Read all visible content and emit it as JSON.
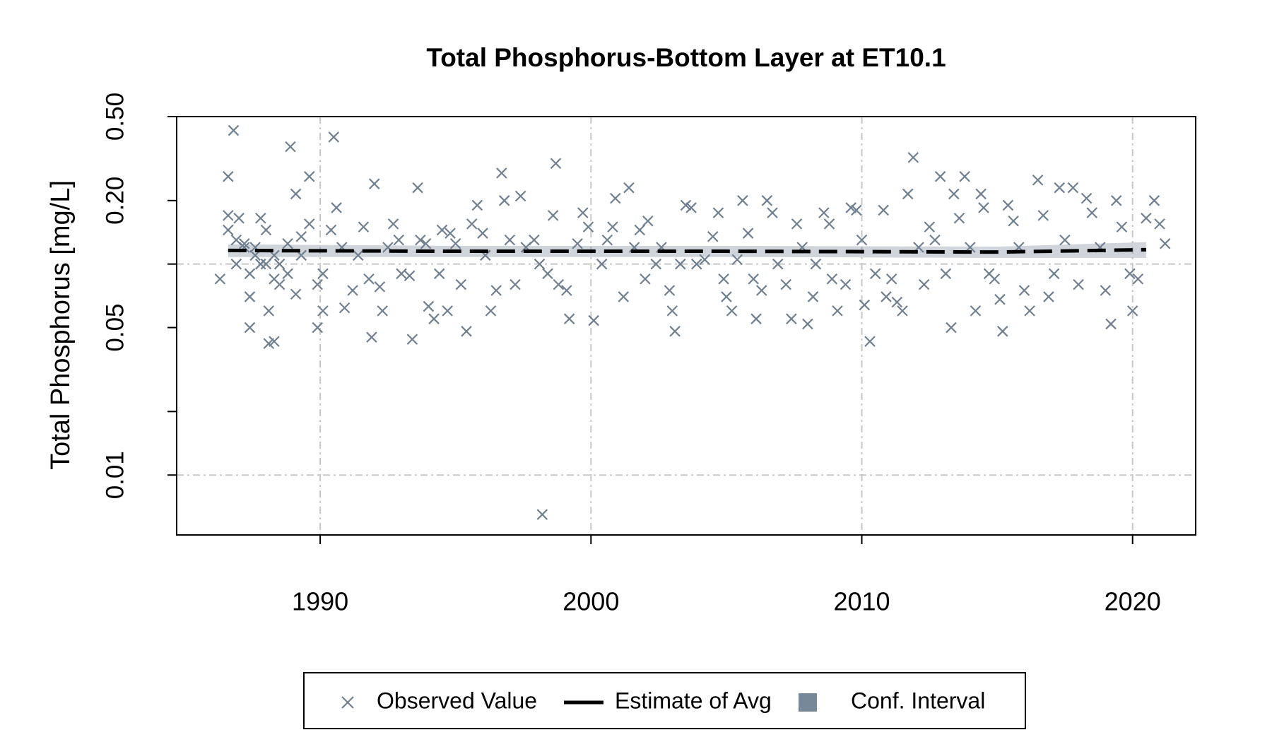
{
  "chart_data": {
    "type": "scatter",
    "title": "Total Phosphorus-Bottom Layer at ET10.1",
    "y_label": "Total Phosphorus [mg/L]",
    "log_y": true,
    "xlim": [
      1984.7,
      2022.33
    ],
    "xticks": [
      1990,
      2000,
      2010,
      2020
    ],
    "ylim": [
      0.0052,
      0.5
    ],
    "yticks": [
      {
        "value": 0.5,
        "label": "0.50"
      },
      {
        "value": 0.2,
        "label": "0.20"
      },
      {
        "value": 0.1,
        "label": null
      },
      0.05,
      {
        "value": 0.02,
        "label": null
      },
      0.01
    ],
    "xgrid": true,
    "ygrid": [
      0.1,
      0.01
    ],
    "legend": "bottom",
    "series": [
      {
        "name": "Observed Value",
        "kind": "points",
        "color": "#708090",
        "x": [
          1986.3,
          1986.6,
          1986.6,
          1986.6,
          1986.8,
          1986.9,
          1986.9,
          1987.0,
          1987.2,
          1987.2,
          1987.4,
          1987.4,
          1987.4,
          1987.6,
          1987.6,
          1987.8,
          1987.8,
          1988.0,
          1988.0,
          1988.1,
          1988.1,
          1988.3,
          1988.3,
          1988.3,
          1988.5,
          1988.5,
          1988.8,
          1988.8,
          1988.9,
          1989.1,
          1989.1,
          1989.3,
          1989.3,
          1989.6,
          1989.6,
          1989.9,
          1989.9,
          1990.1,
          1990.1,
          1990.4,
          1990.5,
          1990.6,
          1990.8,
          1990.9,
          1991.2,
          1991.4,
          1991.6,
          1991.8,
          1991.9,
          1992.0,
          1992.2,
          1992.3,
          1992.5,
          1992.7,
          1992.9,
          1993.0,
          1993.3,
          1993.4,
          1993.6,
          1993.7,
          1993.9,
          1994.0,
          1994.2,
          1994.4,
          1994.5,
          1994.7,
          1994.8,
          1995.0,
          1995.2,
          1995.4,
          1995.6,
          1995.8,
          1996.0,
          1996.1,
          1996.3,
          1996.5,
          1996.7,
          1996.8,
          1997.0,
          1997.2,
          1997.4,
          1997.6,
          1997.9,
          1998.1,
          1998.2,
          1998.4,
          1998.6,
          1998.7,
          1998.8,
          1999.1,
          1999.2,
          1999.5,
          1999.7,
          1999.9,
          2000.1,
          2000.4,
          2000.6,
          2000.8,
          2000.9,
          2001.2,
          2001.4,
          2001.6,
          2001.8,
          2002.0,
          2002.1,
          2002.4,
          2002.6,
          2002.9,
          2003.0,
          2003.1,
          2003.3,
          2003.5,
          2003.7,
          2003.9,
          2004.2,
          2004.5,
          2004.7,
          2004.9,
          2005.0,
          2005.2,
          2005.4,
          2005.6,
          2005.8,
          2006.0,
          2006.1,
          2006.3,
          2006.5,
          2006.7,
          2006.9,
          2007.2,
          2007.4,
          2007.6,
          2007.8,
          2008.0,
          2008.2,
          2008.3,
          2008.6,
          2008.8,
          2008.9,
          2009.1,
          2009.4,
          2009.6,
          2009.8,
          2010.0,
          2010.1,
          2010.3,
          2010.5,
          2010.8,
          2010.9,
          2011.1,
          2011.3,
          2011.5,
          2011.7,
          2011.9,
          2012.1,
          2012.3,
          2012.5,
          2012.7,
          2012.9,
          2013.1,
          2013.3,
          2013.4,
          2013.6,
          2013.8,
          2014.0,
          2014.2,
          2014.4,
          2014.5,
          2014.7,
          2014.9,
          2015.1,
          2015.2,
          2015.4,
          2015.6,
          2015.8,
          2016.0,
          2016.2,
          2016.5,
          2016.7,
          2016.9,
          2017.1,
          2017.3,
          2017.5,
          2017.8,
          2018.0,
          2018.3,
          2018.5,
          2018.8,
          2019.0,
          2019.2,
          2019.4,
          2019.6,
          2019.9,
          2020.0,
          2020.2,
          2020.5,
          2020.8,
          2021.0,
          2021.2
        ],
        "values": [
          0.085,
          0.17,
          0.26,
          0.145,
          0.43,
          0.1,
          0.13,
          0.165,
          0.12,
          0.125,
          0.09,
          0.07,
          0.05,
          0.12,
          0.11,
          0.165,
          0.1,
          0.145,
          0.1,
          0.042,
          0.06,
          0.085,
          0.043,
          0.11,
          0.08,
          0.1,
          0.09,
          0.125,
          0.36,
          0.215,
          0.072,
          0.135,
          0.11,
          0.26,
          0.155,
          0.05,
          0.08,
          0.06,
          0.09,
          0.145,
          0.4,
          0.185,
          0.12,
          0.062,
          0.075,
          0.11,
          0.15,
          0.085,
          0.045,
          0.24,
          0.078,
          0.06,
          0.12,
          0.155,
          0.13,
          0.09,
          0.088,
          0.044,
          0.23,
          0.13,
          0.125,
          0.063,
          0.055,
          0.09,
          0.145,
          0.06,
          0.14,
          0.125,
          0.08,
          0.048,
          0.155,
          0.19,
          0.14,
          0.11,
          0.06,
          0.075,
          0.27,
          0.2,
          0.13,
          0.08,
          0.21,
          0.12,
          0.13,
          0.1,
          0.0065,
          0.09,
          0.17,
          0.3,
          0.08,
          0.075,
          0.055,
          0.125,
          0.175,
          0.15,
          0.054,
          0.1,
          0.13,
          0.15,
          0.205,
          0.07,
          0.23,
          0.12,
          0.145,
          0.085,
          0.16,
          0.1,
          0.12,
          0.075,
          0.06,
          0.048,
          0.1,
          0.19,
          0.185,
          0.1,
          0.105,
          0.135,
          0.175,
          0.085,
          0.07,
          0.06,
          0.105,
          0.2,
          0.14,
          0.085,
          0.055,
          0.075,
          0.2,
          0.175,
          0.1,
          0.08,
          0.055,
          0.155,
          0.12,
          0.052,
          0.07,
          0.1,
          0.175,
          0.155,
          0.085,
          0.06,
          0.08,
          0.185,
          0.18,
          0.13,
          0.064,
          0.043,
          0.09,
          0.18,
          0.07,
          0.085,
          0.066,
          0.06,
          0.215,
          0.32,
          0.12,
          0.08,
          0.15,
          0.13,
          0.26,
          0.09,
          0.05,
          0.215,
          0.165,
          0.26,
          0.12,
          0.06,
          0.215,
          0.185,
          0.09,
          0.085,
          0.068,
          0.048,
          0.19,
          0.16,
          0.12,
          0.075,
          0.06,
          0.25,
          0.17,
          0.07,
          0.09,
          0.23,
          0.13,
          0.23,
          0.08,
          0.205,
          0.175,
          0.12,
          0.075,
          0.052,
          0.2,
          0.15,
          0.09,
          0.06,
          0.085,
          0.165,
          0.2,
          0.155,
          0.125
        ]
      },
      {
        "name": "Estimate of Avg",
        "kind": "line",
        "color": "#000000",
        "x": [
          1986.6,
          1995,
          2005,
          2015,
          2020.5
        ],
        "values": [
          0.116,
          0.115,
          0.115,
          0.114,
          0.117
        ]
      },
      {
        "name": "Conf. Interval",
        "kind": "band",
        "color": "#778899",
        "x": [
          1986.6,
          1995,
          2005,
          2015,
          2020.5
        ],
        "upper": [
          0.124,
          0.122,
          0.122,
          0.121,
          0.127
        ],
        "lower": [
          0.108,
          0.108,
          0.108,
          0.107,
          0.107
        ]
      }
    ]
  }
}
